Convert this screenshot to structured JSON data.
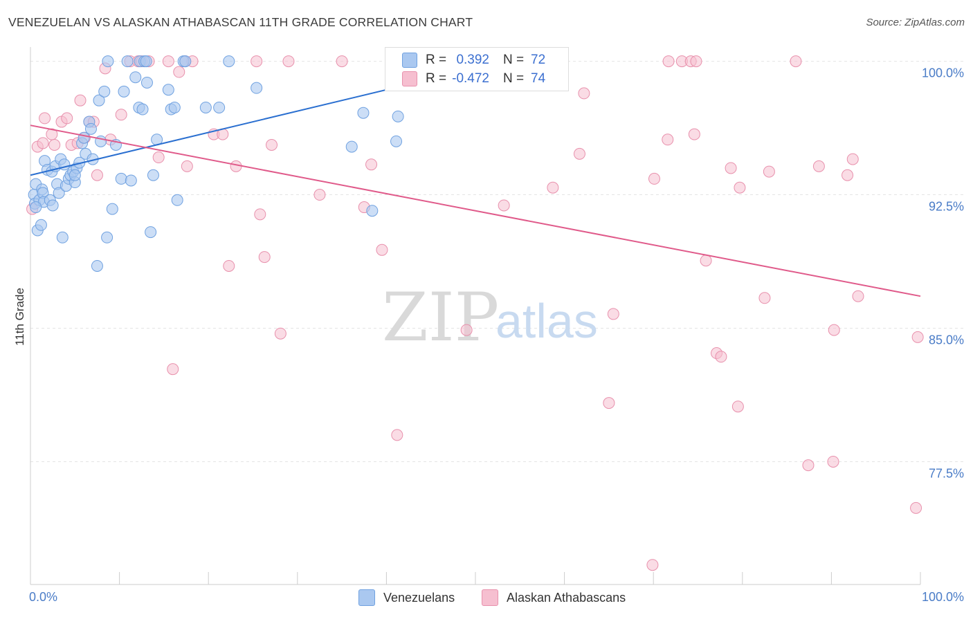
{
  "title": "VENEZUELAN VS ALASKAN ATHABASCAN 11TH GRADE CORRELATION CHART",
  "source": "Source: ZipAtlas.com",
  "watermark": {
    "zip": "ZIP",
    "atlas": "atlas"
  },
  "colors": {
    "blue_fill": "#aac8f0",
    "blue_stroke": "#6fa1e0",
    "blue_line": "#2a6fd0",
    "pink_fill": "#f6bfd0",
    "pink_stroke": "#e890ac",
    "pink_line": "#e05a8a",
    "grid": "#e4e4e4",
    "axis": "#cccccc",
    "tick_label": "#4a7cc7"
  },
  "legend": {
    "rows": [
      {
        "label": "R =",
        "r": "0.392",
        "n_label": "N =",
        "n": "72"
      },
      {
        "label": "R =",
        "r": "-0.472",
        "n_label": "N =",
        "n": "74"
      }
    ]
  },
  "bottom_legend": {
    "series1": "Venezuelans",
    "series2": "Alaskan Athabascans"
  },
  "chart_data": {
    "type": "scatter",
    "title": "VENEZUELAN VS ALASKAN ATHABASCAN 11TH GRADE CORRELATION CHART",
    "xlabel": "",
    "ylabel": "11th Grade",
    "xlim": [
      0,
      100
    ],
    "ylim": [
      70.6,
      100.8
    ],
    "x_tick_labels": [
      "0.0%",
      "100.0%"
    ],
    "y_ticks": [
      77.5,
      85.0,
      92.5,
      100.0
    ],
    "y_tick_labels": [
      "77.5%",
      "85.0%",
      "92.5%",
      "100.0%"
    ],
    "legend_position": "top-center",
    "series": [
      {
        "name": "Venezuelans",
        "R": 0.392,
        "N": 72,
        "trend": {
          "x": [
            0,
            50
          ],
          "y": [
            93.6,
            99.6
          ]
        },
        "points": [
          [
            0.4,
            92.5
          ],
          [
            0.5,
            92.0
          ],
          [
            0.6,
            93.1
          ],
          [
            0.8,
            90.5
          ],
          [
            1.0,
            92.2
          ],
          [
            1.2,
            90.8
          ],
          [
            1.3,
            92.8
          ],
          [
            1.4,
            92.6
          ],
          [
            1.5,
            92.1
          ],
          [
            1.6,
            94.4
          ],
          [
            1.9,
            93.9
          ],
          [
            2.2,
            92.2
          ],
          [
            2.4,
            93.8
          ],
          [
            2.5,
            91.9
          ],
          [
            2.8,
            94.1
          ],
          [
            3.0,
            93.1
          ],
          [
            3.2,
            92.6
          ],
          [
            3.4,
            94.5
          ],
          [
            3.6,
            90.1
          ],
          [
            3.8,
            94.2
          ],
          [
            4.0,
            93.0
          ],
          [
            4.3,
            93.4
          ],
          [
            4.5,
            93.6
          ],
          [
            4.8,
            93.8
          ],
          [
            5.0,
            93.2
          ],
          [
            5.2,
            94.0
          ],
          [
            5.5,
            94.3
          ],
          [
            5.8,
            95.4
          ],
          [
            6.0,
            95.7
          ],
          [
            6.2,
            94.8
          ],
          [
            6.6,
            96.6
          ],
          [
            6.8,
            96.2
          ],
          [
            7.0,
            94.5
          ],
          [
            7.5,
            88.5
          ],
          [
            7.7,
            97.8
          ],
          [
            7.9,
            95.5
          ],
          [
            8.3,
            98.3
          ],
          [
            8.6,
            90.1
          ],
          [
            9.2,
            91.7
          ],
          [
            9.6,
            95.3
          ],
          [
            10.2,
            93.4
          ],
          [
            10.5,
            98.3
          ],
          [
            11.3,
            93.3
          ],
          [
            11.8,
            99.1
          ],
          [
            12.2,
            97.4
          ],
          [
            12.6,
            97.3
          ],
          [
            13.1,
            98.8
          ],
          [
            13.5,
            90.4
          ],
          [
            13.8,
            93.6
          ],
          [
            14.2,
            95.6
          ],
          [
            15.5,
            98.4
          ],
          [
            15.8,
            97.3
          ],
          [
            16.2,
            97.4
          ],
          [
            16.5,
            92.2
          ],
          [
            19.7,
            97.4
          ],
          [
            21.2,
            97.4
          ],
          [
            25.4,
            98.5
          ],
          [
            36.1,
            95.2
          ],
          [
            37.4,
            97.1
          ],
          [
            38.4,
            91.6
          ],
          [
            41.1,
            95.5
          ],
          [
            41.3,
            96.9
          ],
          [
            8.7,
            100.0
          ],
          [
            10.9,
            100.0
          ],
          [
            12.3,
            100.0
          ],
          [
            12.8,
            100.0
          ],
          [
            13.0,
            100.0
          ],
          [
            17.2,
            100.0
          ],
          [
            17.4,
            100.0
          ],
          [
            22.3,
            100.0
          ],
          [
            0.6,
            91.8
          ],
          [
            5.0,
            93.6
          ]
        ]
      },
      {
        "name": "Alaskan Athabascans",
        "R": -0.472,
        "N": 74,
        "trend": {
          "x": [
            0,
            100
          ],
          "y": [
            96.4,
            86.8
          ]
        },
        "points": [
          [
            0.2,
            91.7
          ],
          [
            0.8,
            95.2
          ],
          [
            1.4,
            95.4
          ],
          [
            1.6,
            96.8
          ],
          [
            2.4,
            95.9
          ],
          [
            2.7,
            95.3
          ],
          [
            3.5,
            96.6
          ],
          [
            4.1,
            96.8
          ],
          [
            4.6,
            95.3
          ],
          [
            5.3,
            95.4
          ],
          [
            5.6,
            97.8
          ],
          [
            6.1,
            95.7
          ],
          [
            6.6,
            96.6
          ],
          [
            7.1,
            96.6
          ],
          [
            7.5,
            93.6
          ],
          [
            8.4,
            99.6
          ],
          [
            9.0,
            95.6
          ],
          [
            10.2,
            97.0
          ],
          [
            11.2,
            100.0
          ],
          [
            12.1,
            100.0
          ],
          [
            12.5,
            100.0
          ],
          [
            13.3,
            100.0
          ],
          [
            14.4,
            94.6
          ],
          [
            15.5,
            100.0
          ],
          [
            16.7,
            99.4
          ],
          [
            17.4,
            100.0
          ],
          [
            17.6,
            94.1
          ],
          [
            18.2,
            100.0
          ],
          [
            20.6,
            95.9
          ],
          [
            21.6,
            95.9
          ],
          [
            22.3,
            88.5
          ],
          [
            23.1,
            94.1
          ],
          [
            25.4,
            100.0
          ],
          [
            25.8,
            91.4
          ],
          [
            26.3,
            89.0
          ],
          [
            27.1,
            95.3
          ],
          [
            28.1,
            84.7
          ],
          [
            29.0,
            100.0
          ],
          [
            32.5,
            92.5
          ],
          [
            35.0,
            100.0
          ],
          [
            37.5,
            91.8
          ],
          [
            38.3,
            94.2
          ],
          [
            39.5,
            89.4
          ],
          [
            41.2,
            79.0
          ],
          [
            49.0,
            84.9
          ],
          [
            53.2,
            91.9
          ],
          [
            58.7,
            92.9
          ],
          [
            61.7,
            94.8
          ],
          [
            62.2,
            98.2
          ],
          [
            65.0,
            80.8
          ],
          [
            65.5,
            85.8
          ],
          [
            69.9,
            71.7
          ],
          [
            70.1,
            93.4
          ],
          [
            71.6,
            95.6
          ],
          [
            71.7,
            100.0
          ],
          [
            73.2,
            100.0
          ],
          [
            74.2,
            100.0
          ],
          [
            74.6,
            95.9
          ],
          [
            74.8,
            100.0
          ],
          [
            75.9,
            88.8
          ],
          [
            77.1,
            83.6
          ],
          [
            77.6,
            83.4
          ],
          [
            78.7,
            94.0
          ],
          [
            79.5,
            80.6
          ],
          [
            79.7,
            92.9
          ],
          [
            82.5,
            86.7
          ],
          [
            83.0,
            93.8
          ],
          [
            86.0,
            100.0
          ],
          [
            87.4,
            77.3
          ],
          [
            88.6,
            94.1
          ],
          [
            90.2,
            77.5
          ],
          [
            90.3,
            84.9
          ],
          [
            91.8,
            93.6
          ],
          [
            92.4,
            94.5
          ]
        ],
        "extra_points": [
          [
            93.0,
            86.8
          ],
          [
            99.7,
            84.5
          ],
          [
            99.5,
            74.9
          ],
          [
            16.0,
            82.7
          ]
        ]
      }
    ]
  }
}
